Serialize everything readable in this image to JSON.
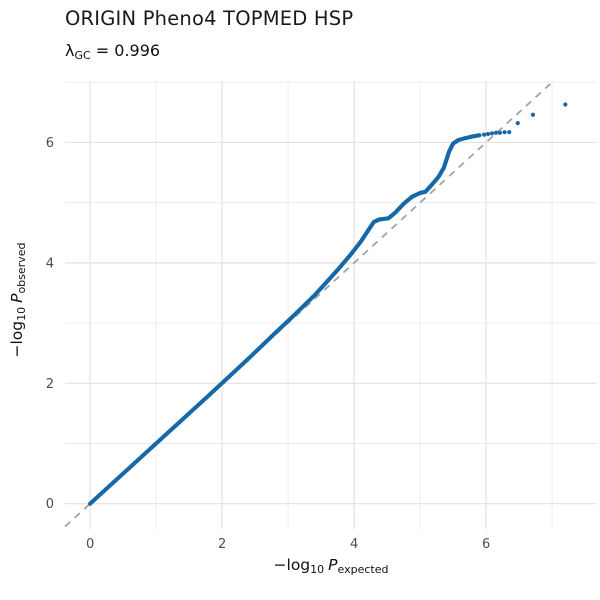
{
  "chart_data": {
    "type": "scatter",
    "subtype": "qq-plot",
    "title": "ORIGIN Pheno4 TOPMED HSP",
    "subtitle": {
      "symbol": "λ",
      "subscript": "GC",
      "rest": " = 0.996"
    },
    "xlabel": {
      "prefix": "−log",
      "prefix_sub": "10",
      "variable": "P",
      "variable_sub": "expected"
    },
    "ylabel": {
      "prefix": "−log",
      "prefix_sub": "10",
      "variable": "P",
      "variable_sub": "observed"
    },
    "x_ticks": [
      0,
      2,
      4,
      6
    ],
    "y_ticks": [
      0,
      2,
      4,
      6
    ],
    "x_minor_gridlines": [
      1,
      3,
      5,
      7
    ],
    "y_minor_gridlines": [
      1,
      3,
      5,
      7
    ],
    "xlim": [
      -0.38,
      7.68
    ],
    "ylim": [
      -0.42,
      7.02
    ],
    "grid": true,
    "legend": "none",
    "reference_line": {
      "kind": "y = x",
      "dashed": true,
      "color": "#a3a3a3",
      "dash": "7 6",
      "width": 1.8
    },
    "colors": {
      "point": "#1668a8",
      "major_grid": "#e2e2e2",
      "minor_grid": "#ebebeb",
      "tick_label": "#4d4d4d",
      "title": "#1a1a1a"
    },
    "point_radius": 2.1,
    "dense_point_step": 0.02,
    "qq_curve_anchors": [
      [
        0.0,
        0.0
      ],
      [
        0.6,
        0.6
      ],
      [
        1.2,
        1.2
      ],
      [
        1.8,
        1.8
      ],
      [
        2.4,
        2.41
      ],
      [
        2.8,
        2.83
      ],
      [
        3.1,
        3.14
      ],
      [
        3.4,
        3.46
      ],
      [
        3.6,
        3.7
      ],
      [
        3.78,
        3.92
      ],
      [
        3.95,
        4.14
      ],
      [
        4.1,
        4.35
      ],
      [
        4.22,
        4.55
      ],
      [
        4.3,
        4.68
      ],
      [
        4.38,
        4.72
      ],
      [
        4.52,
        4.74
      ],
      [
        4.62,
        4.83
      ],
      [
        4.75,
        4.98
      ],
      [
        4.88,
        5.1
      ],
      [
        5.0,
        5.16
      ],
      [
        5.08,
        5.18
      ],
      [
        5.18,
        5.3
      ],
      [
        5.28,
        5.43
      ],
      [
        5.36,
        5.58
      ],
      [
        5.44,
        5.85
      ],
      [
        5.5,
        5.98
      ],
      [
        5.58,
        6.04
      ],
      [
        5.68,
        6.07
      ],
      [
        5.8,
        6.1
      ],
      [
        5.9,
        6.12
      ]
    ],
    "qq_tail_points": [
      [
        5.97,
        6.13
      ],
      [
        6.03,
        6.14
      ],
      [
        6.09,
        6.15
      ],
      [
        6.15,
        6.16
      ],
      [
        6.21,
        6.16
      ],
      [
        6.28,
        6.17
      ],
      [
        6.35,
        6.17
      ],
      [
        6.48,
        6.32
      ],
      [
        6.71,
        6.46
      ],
      [
        7.2,
        6.63
      ]
    ]
  }
}
